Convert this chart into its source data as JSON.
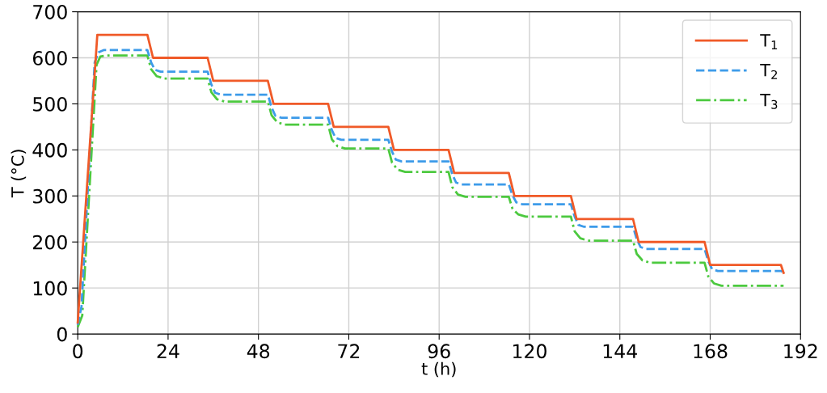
{
  "chart_data": {
    "type": "line",
    "xlabel": "t (h)",
    "ylabel": "T (°C)",
    "xlim": [
      0,
      192
    ],
    "xticks": [
      0,
      24,
      48,
      72,
      96,
      120,
      144,
      168,
      192
    ],
    "ylim": [
      0,
      700
    ],
    "yticks": [
      0,
      100,
      200,
      300,
      400,
      500,
      600,
      700
    ],
    "grid": true,
    "legend": "top right",
    "marker": "none",
    "series": [
      {
        "name": "T$_{1}$",
        "color": "#f05a28",
        "line_style": "solid",
        "x": [
          0,
          5.2,
          18.5,
          20,
          34.5,
          36,
          50.5,
          52,
          66.5,
          68,
          82.5,
          84,
          98.5,
          100,
          114.5,
          116,
          131,
          132.5,
          147.5,
          149,
          166.5,
          168,
          186.8,
          187.5
        ],
        "values": [
          25,
          650,
          650,
          600,
          600,
          550,
          550,
          500,
          500,
          450,
          450,
          400,
          400,
          350,
          350,
          300,
          300,
          250,
          250,
          200,
          200,
          150,
          150,
          133
        ]
      },
      {
        "name": "T$_{2}$",
        "color": "#3d9be9",
        "line_style": "dashed",
        "x": [
          0,
          1,
          4.5,
          5.5,
          7,
          18.5,
          19.5,
          20.5,
          22,
          34.5,
          35.5,
          36.5,
          38,
          50.5,
          51.5,
          52.5,
          54,
          66.5,
          67.5,
          68.5,
          70,
          82.5,
          83.5,
          84.5,
          86,
          98.5,
          99.5,
          100.5,
          102,
          114.5,
          115.5,
          116.5,
          118,
          131,
          132,
          133,
          134.5,
          147.5,
          148.5,
          149.5,
          151,
          166.5,
          167.5,
          168.5,
          170,
          187,
          187.5
        ],
        "values": [
          20,
          60,
          590,
          612,
          617,
          617,
          590,
          574,
          570,
          570,
          542,
          524,
          520,
          520,
          492,
          474,
          470,
          470,
          443,
          426,
          422,
          422,
          396,
          379,
          375,
          375,
          347,
          329,
          325,
          325,
          301,
          286,
          282,
          282,
          255,
          237,
          233,
          233,
          206,
          189,
          185,
          185,
          158,
          141,
          137,
          137,
          130
        ]
      },
      {
        "name": "T$_{3}$",
        "color": "#4cc93f",
        "line_style": "dashdot",
        "x": [
          0,
          1.2,
          5,
          6,
          7.5,
          18.5,
          19.5,
          21,
          23,
          34.5,
          35.5,
          37,
          39,
          50.5,
          51.5,
          53,
          55,
          66.5,
          67.5,
          69,
          71,
          82.5,
          83.5,
          85,
          87,
          98.5,
          99.5,
          101,
          103,
          114.5,
          115.5,
          117,
          119,
          131,
          132,
          133.5,
          135.5,
          147.5,
          148.5,
          150,
          152,
          166.5,
          167.5,
          169,
          171,
          187.5
        ],
        "values": [
          15,
          40,
          585,
          603,
          605,
          605,
          575,
          560,
          555,
          555,
          525,
          510,
          505,
          505,
          475,
          460,
          455,
          455,
          423,
          408,
          403,
          403,
          372,
          357,
          352,
          352,
          319,
          303,
          298,
          298,
          272,
          260,
          255,
          255,
          223,
          208,
          203,
          203,
          174,
          160,
          155,
          155,
          125,
          110,
          105,
          105
        ]
      }
    ]
  }
}
